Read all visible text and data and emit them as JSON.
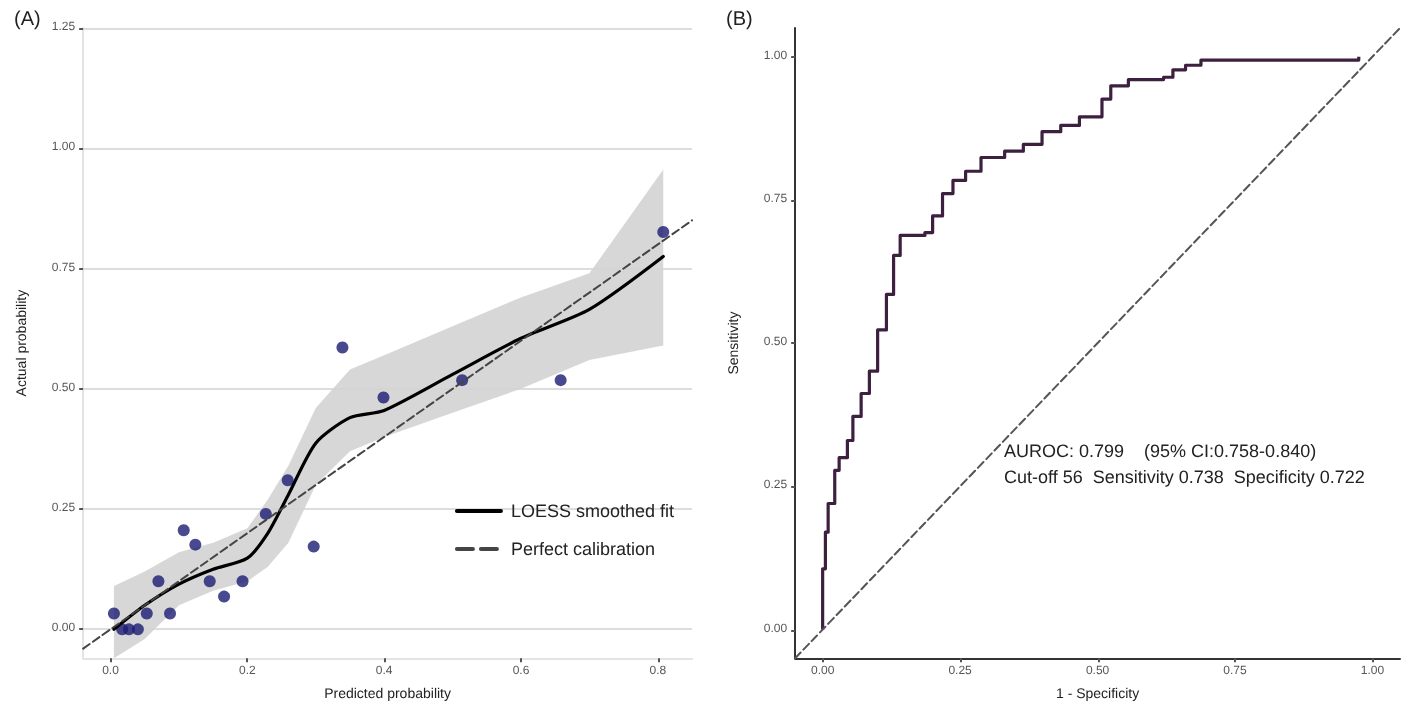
{
  "chart_data": [
    {
      "type": "scatter",
      "title": "(A)",
      "xlabel": "Predicted probability",
      "ylabel": "Actual probability",
      "xlim": [
        -0.04,
        0.85
      ],
      "ylim": [
        -0.06,
        1.25
      ],
      "xticks": [
        {
          "value": 0,
          "label": "0.0"
        },
        {
          "value": 0.2,
          "label": "0.2"
        },
        {
          "value": 0.4,
          "label": "0.4"
        },
        {
          "value": 0.6,
          "label": "0.6"
        },
        {
          "value": 0.8,
          "label": "0.8"
        }
      ],
      "yticks": [
        {
          "value": 0,
          "label": "0.00"
        },
        {
          "value": 0.25,
          "label": "0.25"
        },
        {
          "value": 0.5,
          "label": "0.50"
        },
        {
          "value": 0.75,
          "label": "0.75"
        },
        {
          "value": 1,
          "label": "1.00"
        },
        {
          "value": 1.25,
          "label": "1.25"
        }
      ],
      "grid": "y",
      "legend": "bottom right",
      "series": [
        {
          "marker": "circle",
          "color": "#1c1c73",
          "x": [
            0.005,
            0.017,
            0.027,
            0.04,
            0.053,
            0.07,
            0.087,
            0.107,
            0.124,
            0.145,
            0.166,
            0.193,
            0.227,
            0.259,
            0.297,
            0.339,
            0.399,
            0.514,
            0.658,
            0.808
          ],
          "values": [
            0.033,
            0,
            0,
            0,
            0.033,
            0.1,
            0.033,
            0.206,
            0.176,
            0.1,
            0.068,
            0.1,
            0.24,
            0.31,
            0.172,
            0.586,
            0.482,
            0.518,
            0.518,
            0.826
          ]
        },
        {
          "type": "line",
          "name": "LOESS smoothed fit",
          "color": "#000000",
          "x": [
            0.005,
            0.05,
            0.1,
            0.15,
            0.2,
            0.23,
            0.26,
            0.3,
            0.35,
            0.4,
            0.5,
            0.6,
            0.7,
            0.808
          ],
          "values": [
            0,
            0.05,
            0.094,
            0.125,
            0.148,
            0.2,
            0.28,
            0.387,
            0.44,
            0.455,
            0.53,
            0.605,
            0.665,
            0.775
          ],
          "lower": [
            -0.06,
            -0.02,
            0.05,
            0.08,
            0.1,
            0.13,
            0.18,
            0.3,
            0.37,
            0.4,
            0.45,
            0.5,
            0.56,
            0.59
          ],
          "upper": [
            0.09,
            0.12,
            0.16,
            0.18,
            0.21,
            0.27,
            0.34,
            0.46,
            0.54,
            0.57,
            0.63,
            0.69,
            0.74,
            0.956
          ]
        },
        {
          "type": "line",
          "name": "Perfect calibration",
          "color": "#444444",
          "line_style": "dashed",
          "x": [
            -0.04,
            0.85
          ],
          "values": [
            -0.04,
            0.85
          ]
        }
      ]
    },
    {
      "type": "step",
      "title": "(B)",
      "xlabel": "1 - Specificity",
      "ylabel": "Sensitivity",
      "xlim": [
        -0.05,
        1.05
      ],
      "ylim": [
        -0.05,
        1.05
      ],
      "xticks": [
        {
          "value": 0,
          "label": "0.00"
        },
        {
          "value": 0.25,
          "label": "0.25"
        },
        {
          "value": 0.5,
          "label": "0.50"
        },
        {
          "value": 0.75,
          "label": "0.75"
        },
        {
          "value": 1,
          "label": "1.00"
        }
      ],
      "yticks": [
        {
          "value": 0,
          "label": "0.00"
        },
        {
          "value": 0.25,
          "label": "0.25"
        },
        {
          "value": 0.5,
          "label": "0.50"
        },
        {
          "value": 0.75,
          "label": "0.75"
        },
        {
          "value": 1,
          "label": "1.00"
        }
      ],
      "annotations": [
        "AUROC: 0.799    (95% CI:0.758-0.840)",
        "Cut-off 56  Sensitivity 0.738  Specificity 0.722"
      ],
      "series": [
        {
          "color": "#3d1f3f",
          "x": [
            0,
            0,
            0.005,
            0.01,
            0.022,
            0.03,
            0.045,
            0.055,
            0.07,
            0.085,
            0.1,
            0.1,
            0.116,
            0.129,
            0.141,
            0.186,
            0.2,
            0.218,
            0.237,
            0.26,
            0.288,
            0.331,
            0.365,
            0.399,
            0.433,
            0.467,
            0.508,
            0.524,
            0.556,
            0.62,
            0.637,
            0.66,
            0.688,
            0.975
          ],
          "values": [
            0,
            0.106,
            0.17,
            0.22,
            0.278,
            0.3,
            0.33,
            0.372,
            0.412,
            0.451,
            0.502,
            0.523,
            0.585,
            0.653,
            0.688,
            0.693,
            0.722,
            0.761,
            0.784,
            0.8,
            0.824,
            0.835,
            0.847,
            0.869,
            0.88,
            0.895,
            0.926,
            0.949,
            0.96,
            0.964,
            0.977,
            0.985,
            0.994,
            1
          ]
        },
        {
          "type": "line",
          "color": "#555555",
          "line_style": "dashed",
          "x": [
            -0.05,
            1.05
          ],
          "values": [
            -0.05,
            1.05
          ]
        }
      ]
    }
  ]
}
